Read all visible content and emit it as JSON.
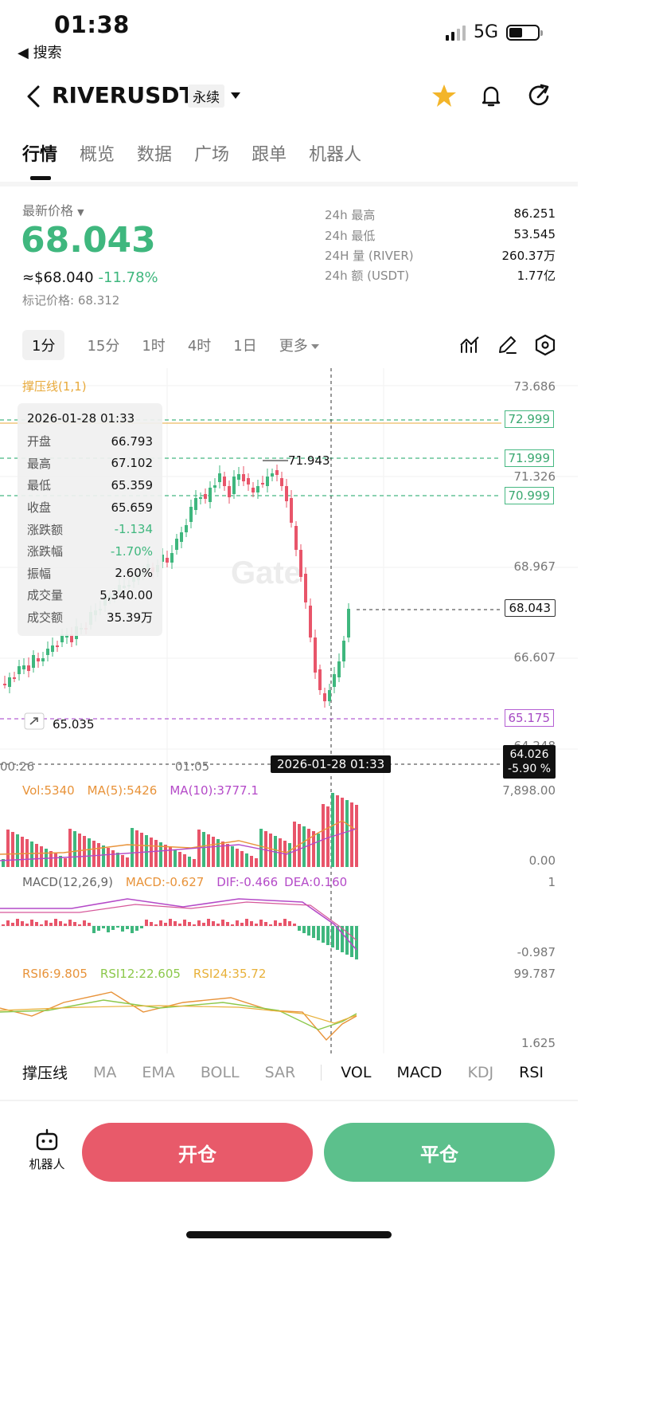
{
  "status_bar": {
    "time": "01:38",
    "back_label": "◀ 搜索",
    "network": "5G"
  },
  "header": {
    "pair": "RIVERUSDT",
    "contract_type": "永续",
    "icons": [
      "back-chevron-icon",
      "star-icon",
      "bell-icon",
      "share-icon"
    ],
    "star_color": "#f3b52a"
  },
  "tabs": [
    "行情",
    "概览",
    "数据",
    "广场",
    "跟单",
    "机器人"
  ],
  "price": {
    "label": "最新价格",
    "last": "68.043",
    "usd_approx": "≈$68.040",
    "change_pct": "-11.78%",
    "mark_label": "标记价格:",
    "mark_value": "68.312",
    "color_up": "#3fb77e"
  },
  "stats": [
    {
      "label": "24h  最高",
      "value": "86.251"
    },
    {
      "label": "24h  最低",
      "value": "53.545"
    },
    {
      "label": "24H  量 (RIVER)",
      "value": "260.37万"
    },
    {
      "label": "24h  额 (USDT)",
      "value": "1.77亿"
    }
  ],
  "intervals": [
    "1分",
    "15分",
    "1时",
    "4时",
    "1日",
    "更多"
  ],
  "interval_active": "1分",
  "chart_tools": [
    "indicator-icon",
    "draw-pen-icon",
    "settings-hex-icon"
  ],
  "chart": {
    "sr_label": "撑压线(1,1)",
    "y_axis": [
      "73.686",
      "71.326",
      "68.967",
      "66.607",
      "64.248"
    ],
    "levels": [
      "72.999",
      "71.999",
      "70.999"
    ],
    "current_price": "68.043",
    "support": "65.175",
    "high_marker": "71.943",
    "low_marker": "65.035",
    "crosshair_price": "64.026",
    "crosshair_pct": "-5.90 %",
    "crosshair_time": "2026-01-28 01:33",
    "x_axis": [
      "00:26",
      "01:05"
    ],
    "ohlc": {
      "time": "2026-01-28 01:33",
      "rows": [
        {
          "k": "开盘",
          "v": "66.793"
        },
        {
          "k": "最高",
          "v": "67.102"
        },
        {
          "k": "最低",
          "v": "65.359"
        },
        {
          "k": "收盘",
          "v": "65.659"
        },
        {
          "k": "涨跌额",
          "v": "-1.134",
          "neg": true
        },
        {
          "k": "涨跌幅",
          "v": "-1.70%",
          "neg": true
        },
        {
          "k": "振幅",
          "v": "2.60%"
        },
        {
          "k": "成交量",
          "v": "5,340.00"
        },
        {
          "k": "成交额",
          "v": "35.39万"
        }
      ]
    }
  },
  "vol": {
    "vol": "Vol:5340",
    "ma5": "MA(5):5426",
    "ma10": "MA(10):3777.1",
    "top": "7,898.00",
    "bottom": "0.00"
  },
  "macd": {
    "title": "MACD(12,26,9)",
    "macd": "MACD:-0.627",
    "dif": "DIF:-0.466",
    "dea": "DEA:0.160",
    "top": "1",
    "bottom": "-0.987"
  },
  "rsi": {
    "r6": "RSI6:9.805",
    "r12": "RSI12:22.605",
    "r24": "RSI24:35.72",
    "top": "99.787",
    "bottom": "1.625"
  },
  "indicator_tabs": {
    "main": [
      "撑压线",
      "MA",
      "EMA",
      "BOLL",
      "SAR"
    ],
    "sub": [
      "VOL",
      "MACD",
      "KDJ",
      "RSI"
    ]
  },
  "actions": {
    "robot": "机器人",
    "open": "开仓",
    "close": "平仓"
  }
}
